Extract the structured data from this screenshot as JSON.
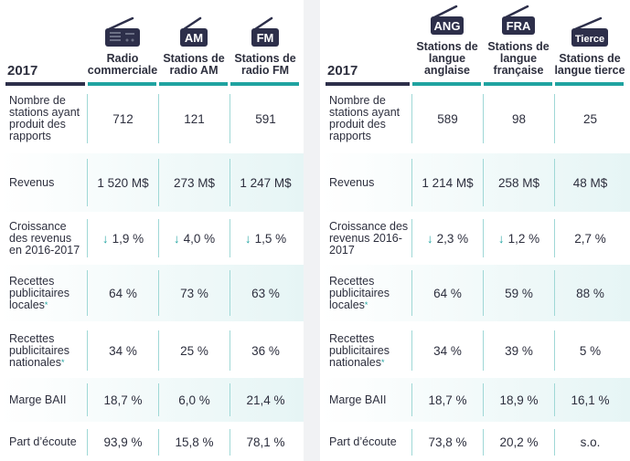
{
  "colors": {
    "teal": "#1fa3a0",
    "dark": "#2d2f4a"
  },
  "left": {
    "year": "2017",
    "columns": [
      {
        "icon": "radio-icon",
        "badge": "",
        "label": "Radio commerciale"
      },
      {
        "icon": "radio-icon",
        "badge": "AM",
        "label": "Stations de radio AM"
      },
      {
        "icon": "radio-icon",
        "badge": "FM",
        "label": "Stations de radio FM"
      }
    ],
    "rows": [
      {
        "label": "Nombre de stations ayant produit des rapports",
        "values": [
          "712",
          "121",
          "591"
        ]
      },
      {
        "label": "Revenus",
        "values": [
          "1 520 M$",
          "273 M$",
          "1 247 M$"
        ]
      },
      {
        "label": "Croissance des revenus en 2016-2017",
        "values": [
          "1,9 %",
          "4,0 %",
          "1,5 %"
        ],
        "arrows": [
          "down",
          "down",
          "down"
        ]
      },
      {
        "label": "Recettes publicitaires locales",
        "star": "*",
        "values": [
          "64 %",
          "73 %",
          "63 %"
        ]
      },
      {
        "label": "Recettes publicitaires nationales",
        "star": "*",
        "values": [
          "34 %",
          "25 %",
          "36 %"
        ]
      },
      {
        "label": "Marge BAII",
        "values": [
          "18,7 %",
          "6,0 %",
          "21,4 %"
        ]
      },
      {
        "label": "Part d’écoute",
        "values": [
          "93,9 %",
          "15,8 %",
          "78,1 %"
        ]
      }
    ]
  },
  "right": {
    "year": "2017",
    "columns": [
      {
        "icon": "radio-icon",
        "badge": "ANG",
        "label": "Stations de langue anglaise"
      },
      {
        "icon": "radio-icon",
        "badge": "FRA",
        "label": "Stations de langue française"
      },
      {
        "icon": "radio-icon",
        "badge": "Tierce",
        "label": "Stations de langue tierce"
      }
    ],
    "rows": [
      {
        "label": "Nombre de stations ayant produit des rapports",
        "values": [
          "589",
          "98",
          "25"
        ]
      },
      {
        "label": "Revenus",
        "values": [
          "1 214  M$",
          "258 M$",
          "48 M$"
        ]
      },
      {
        "label": "Croissance des revenus 2016-2017",
        "values": [
          "2,3 %",
          "1,2 %",
          "2,7 %"
        ],
        "arrows": [
          "down",
          "down",
          ""
        ]
      },
      {
        "label": "Recettes publicitaires locales",
        "star": "*",
        "values": [
          "64 %",
          "59 %",
          "88 %"
        ]
      },
      {
        "label": "Recettes publicitaires nationales",
        "star": "*",
        "values": [
          "34 %",
          "39 %",
          "5 %"
        ]
      },
      {
        "label": "Marge BAII",
        "values": [
          "18,7 %",
          "18,9 %",
          "16,1 %"
        ]
      },
      {
        "label": "Part d’écoute",
        "values": [
          "73,8 %",
          "20,2 %",
          "s.o."
        ]
      }
    ]
  }
}
